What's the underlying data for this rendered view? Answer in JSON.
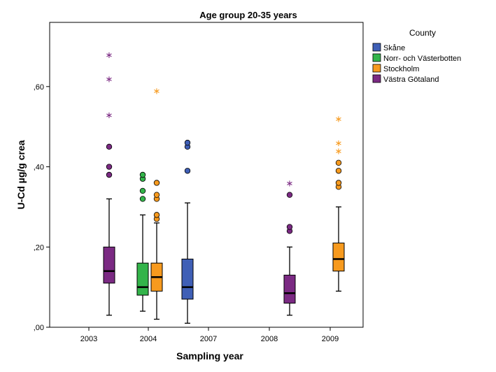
{
  "chart_data": {
    "type": "boxplot",
    "title": "Age group 20-35 years",
    "xlabel": "Sampling year",
    "ylabel": "U-Cd µg/g crea",
    "ylim": [
      0,
      0.76
    ],
    "yticks": [
      0,
      0.2,
      0.4,
      0.6
    ],
    "ytick_labels": [
      ",00",
      ",20",
      ",40",
      ",60"
    ],
    "categories": [
      "2003",
      "2004",
      "2007",
      "2008",
      "2009"
    ],
    "grid": false,
    "legend": {
      "title": "County",
      "placement": "right",
      "entries": [
        {
          "name": "Skåne",
          "color": "#3f5fb6"
        },
        {
          "name": "Norr- och Västerbotten",
          "color": "#33b44a"
        },
        {
          "name": "Stockholm",
          "color": "#f79a1e"
        },
        {
          "name": "Västra Götaland",
          "color": "#7b2a83"
        }
      ]
    },
    "boxes": [
      {
        "category": "2003",
        "series": "Västra Götaland",
        "whisker_low": 0.03,
        "q1": 0.11,
        "median": 0.14,
        "q3": 0.2,
        "whisker_high": 0.32,
        "outliers": [
          0.38,
          0.4,
          0.45
        ],
        "extremes": [
          0.53,
          0.62,
          0.68
        ]
      },
      {
        "category": "2004",
        "series": "Norr- och Västerbotten",
        "whisker_low": 0.04,
        "q1": 0.08,
        "median": 0.1,
        "q3": 0.16,
        "whisker_high": 0.28,
        "outliers": [
          0.32,
          0.34,
          0.37,
          0.38
        ],
        "extremes": []
      },
      {
        "category": "2004",
        "series": "Stockholm",
        "whisker_low": 0.02,
        "q1": 0.09,
        "median": 0.125,
        "q3": 0.16,
        "whisker_high": 0.26,
        "outliers": [
          0.27,
          0.28,
          0.32,
          0.33,
          0.36
        ],
        "extremes": [
          0.59
        ]
      },
      {
        "category": "2007",
        "series": "Skåne",
        "whisker_low": 0.01,
        "q1": 0.07,
        "median": 0.1,
        "q3": 0.17,
        "whisker_high": 0.31,
        "outliers": [
          0.39,
          0.45,
          0.46
        ],
        "extremes": []
      },
      {
        "category": "2008",
        "series": "Västra Götaland",
        "whisker_low": 0.03,
        "q1": 0.06,
        "median": 0.085,
        "q3": 0.13,
        "whisker_high": 0.2,
        "outliers": [
          0.24,
          0.25,
          0.33
        ],
        "extremes": [
          0.36
        ]
      },
      {
        "category": "2009",
        "series": "Stockholm",
        "whisker_low": 0.09,
        "q1": 0.14,
        "median": 0.17,
        "q3": 0.21,
        "whisker_high": 0.3,
        "outliers": [
          0.35,
          0.36,
          0.39,
          0.41
        ],
        "extremes": [
          0.44,
          0.46,
          0.52
        ]
      }
    ]
  }
}
